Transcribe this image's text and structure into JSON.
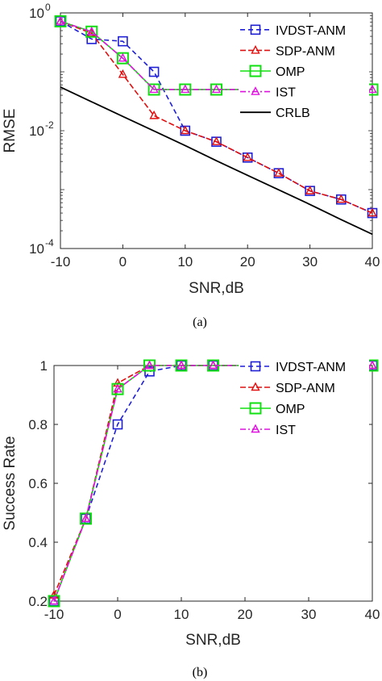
{
  "chart_data": [
    {
      "type": "line",
      "panel_caption": "(a)",
      "xlabel": "SNR,dB",
      "ylabel": "RMSE",
      "xlim": [
        -10,
        40
      ],
      "ylim": [
        0.0001,
        1
      ],
      "yscale": "log",
      "xticks": [
        "-10",
        "0",
        "10",
        "20",
        "30",
        "40"
      ],
      "yticks": [
        {
          "base": "10",
          "exp": "0",
          "value": 1
        },
        {
          "base": "10",
          "exp": "-2",
          "value": 0.01
        },
        {
          "base": "10",
          "exp": "-4",
          "value": 0.0001
        }
      ],
      "legend_position": "top-right",
      "x": [
        -10,
        -5,
        0,
        5,
        10,
        15,
        20,
        25,
        30,
        35,
        40
      ],
      "series": [
        {
          "name": "IVDST-ANM",
          "color": "#1f1fd6",
          "dash": "6,4",
          "marker": "square",
          "values": [
            0.72,
            0.36,
            0.33,
            0.1,
            0.01,
            0.0065,
            0.0035,
            0.0019,
            0.00095,
            0.00068,
            0.0004
          ]
        },
        {
          "name": "SDP-ANM",
          "color": "#e01010",
          "dash": "7,3",
          "marker": "triangle",
          "values": [
            0.72,
            0.45,
            0.09,
            0.018,
            0.01,
            0.0065,
            0.0035,
            0.0019,
            0.00095,
            0.00068,
            0.0004
          ]
        },
        {
          "name": "OMP",
          "color": "#10e010",
          "dash": "none",
          "marker": "square-large",
          "values": [
            0.72,
            0.48,
            0.17,
            0.05,
            0.05,
            0.05,
            0.05,
            0.05,
            0.05,
            0.05,
            0.05
          ]
        },
        {
          "name": "IST",
          "color": "#e010e0",
          "dash": "7,3,2,3",
          "marker": "triangle",
          "values": [
            0.72,
            0.48,
            0.17,
            0.05,
            0.05,
            0.05,
            0.05,
            0.05,
            0.05,
            0.05,
            0.05
          ]
        },
        {
          "name": "CRLB",
          "color": "#000000",
          "dash": "none",
          "marker": "none",
          "values": [
            0.055,
            0.031,
            0.0175,
            0.0099,
            0.0056,
            0.0031,
            0.00175,
            0.00099,
            0.00056,
            0.00031,
            0.000175
          ]
        }
      ]
    },
    {
      "type": "line",
      "panel_caption": "(b)",
      "xlabel": "SNR,dB",
      "ylabel": "Success Rate",
      "xlim": [
        -10,
        40
      ],
      "ylim": [
        0.2,
        1
      ],
      "xticks": [
        "-10",
        "0",
        "10",
        "20",
        "30",
        "40"
      ],
      "yticks": [
        "0.2",
        "0.4",
        "0.6",
        "0.8",
        "1"
      ],
      "legend_position": "top-right",
      "x": [
        -10,
        -5,
        0,
        5,
        10,
        15,
        20,
        25,
        30,
        35,
        40
      ],
      "series": [
        {
          "name": "IVDST-ANM",
          "color": "#1f1fd6",
          "dash": "6,4",
          "marker": "square",
          "values": [
            0.2,
            0.48,
            0.8,
            0.98,
            1,
            1,
            1,
            1,
            1,
            1,
            1
          ]
        },
        {
          "name": "SDP-ANM",
          "color": "#e01010",
          "dash": "7,3",
          "marker": "triangle",
          "values": [
            0.22,
            0.48,
            0.94,
            1,
            1,
            1,
            1,
            1,
            1,
            1,
            1
          ]
        },
        {
          "name": "OMP",
          "color": "#10e010",
          "dash": "none",
          "marker": "square-large",
          "values": [
            0.2,
            0.48,
            0.92,
            1,
            1,
            1,
            1,
            1,
            1,
            1,
            1
          ]
        },
        {
          "name": "IST",
          "color": "#e010e0",
          "dash": "7,3,2,3",
          "marker": "triangle",
          "values": [
            0.2,
            0.48,
            0.92,
            1,
            1,
            1,
            1,
            1,
            1,
            1,
            1
          ]
        }
      ]
    }
  ]
}
